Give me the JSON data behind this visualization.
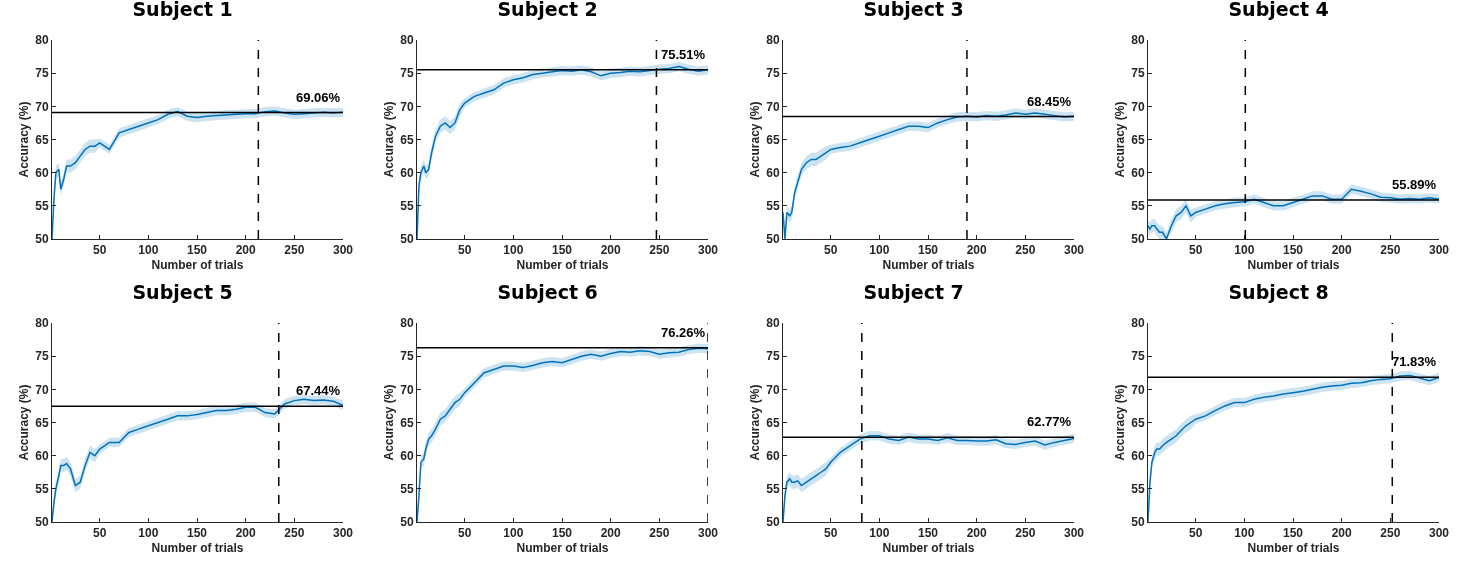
{
  "chart_data": [
    {
      "type": "line",
      "title": "Subject 1",
      "xlabel": "Number of trials",
      "ylabel": "Accuracy (%)",
      "xlim": [
        1,
        300
      ],
      "xticks": [
        50,
        100,
        150,
        200,
        250,
        300
      ],
      "ylim": [
        50,
        80
      ],
      "yticks": [
        50,
        55,
        60,
        65,
        70,
        75,
        80
      ],
      "grid": false,
      "x": [
        1,
        3,
        5,
        8,
        10,
        13,
        16,
        20,
        25,
        30,
        35,
        40,
        45,
        50,
        60,
        70,
        80,
        90,
        100,
        110,
        120,
        130,
        140,
        150,
        160,
        170,
        180,
        190,
        200,
        210,
        220,
        230,
        240,
        250,
        260,
        270,
        280,
        290,
        300
      ],
      "series": [
        {
          "color": "#0072bd",
          "values": [
            50,
            56,
            60,
            60.5,
            57.5,
            59,
            61,
            61,
            61.5,
            62.5,
            63.5,
            64,
            64,
            64.5,
            63.5,
            66,
            66.5,
            67,
            67.5,
            68,
            68.8,
            69.2,
            68.5,
            68.3,
            68.5,
            68.6,
            68.7,
            68.8,
            68.9,
            68.9,
            69.2,
            69.3,
            69,
            68.8,
            68.9,
            69,
            69.1,
            69,
            69.1
          ],
          "lower": [
            50,
            55,
            59,
            59.5,
            56.5,
            58,
            60,
            60,
            60.5,
            61.5,
            62.5,
            63,
            63,
            63.8,
            62.8,
            65.3,
            65.8,
            66.3,
            66.8,
            67.3,
            68.1,
            68.5,
            67.8,
            67.6,
            67.8,
            67.9,
            68,
            68.1,
            68.2,
            68.2,
            68.5,
            68.6,
            68.3,
            68.1,
            68.2,
            68.3,
            68.4,
            68.3,
            68.4
          ],
          "upper": [
            51,
            57,
            61,
            61.5,
            58.5,
            60,
            62,
            62,
            62.5,
            63.5,
            64.5,
            65,
            65,
            65.2,
            64.2,
            66.7,
            67.2,
            67.7,
            68.2,
            68.7,
            69.5,
            69.9,
            69.2,
            69,
            69.2,
            69.3,
            69.4,
            69.5,
            69.6,
            69.6,
            69.9,
            70,
            69.7,
            69.5,
            69.6,
            69.7,
            69.8,
            69.7,
            69.8
          ]
        }
      ],
      "ref_lines": [
        {
          "axis": "y",
          "value": 69.06,
          "label": "69.06%",
          "color": "#000000"
        },
        {
          "axis": "x",
          "value": 213,
          "color": "#000000",
          "line_style": "dashed"
        }
      ]
    },
    {
      "type": "line",
      "title": "Subject 2",
      "xlabel": "Number of trials",
      "ylabel": "Accuracy (%)",
      "xlim": [
        1,
        300
      ],
      "xticks": [
        50,
        100,
        150,
        200,
        250,
        300
      ],
      "ylim": [
        50,
        80
      ],
      "yticks": [
        50,
        55,
        60,
        65,
        70,
        75,
        80
      ],
      "grid": false,
      "x": [
        1,
        3,
        5,
        8,
        10,
        13,
        16,
        20,
        25,
        30,
        35,
        40,
        45,
        50,
        60,
        70,
        80,
        90,
        100,
        110,
        120,
        130,
        140,
        150,
        160,
        170,
        180,
        190,
        200,
        210,
        220,
        230,
        240,
        250,
        260,
        270,
        280,
        290,
        300
      ],
      "series": [
        {
          "color": "#0072bd",
          "values": [
            50,
            58,
            60,
            61,
            60,
            60.5,
            63,
            65.5,
            67,
            67.5,
            66.8,
            67.5,
            69.5,
            70.5,
            71.5,
            72,
            72.5,
            73.5,
            74,
            74.3,
            74.8,
            75,
            75.2,
            75.4,
            75.3,
            75.5,
            75.2,
            74.6,
            75,
            75.1,
            75.3,
            75.2,
            75.4,
            75.6,
            75.7,
            76,
            75.6,
            75.3,
            75.5
          ],
          "lower": [
            50,
            57,
            59,
            60,
            59,
            59.5,
            62,
            64.5,
            66,
            66.5,
            65.8,
            66.5,
            68.5,
            69.8,
            70.8,
            71.3,
            71.8,
            72.8,
            73.3,
            73.6,
            74.1,
            74.3,
            74.5,
            74.7,
            74.6,
            74.8,
            74.5,
            73.9,
            74.3,
            74.4,
            74.6,
            74.5,
            74.7,
            74.9,
            75,
            75.3,
            74.9,
            74.6,
            74.8
          ],
          "upper": [
            51,
            59,
            61,
            62,
            61,
            61.5,
            64,
            66.5,
            68,
            68.5,
            67.8,
            68.5,
            70.5,
            71.2,
            72.2,
            72.7,
            73.2,
            74.2,
            74.7,
            75,
            75.5,
            75.7,
            75.9,
            76.1,
            76,
            76.2,
            75.9,
            75.3,
            75.7,
            75.8,
            76,
            75.9,
            76.1,
            76.3,
            76.4,
            76.7,
            76.3,
            76,
            76.2
          ]
        }
      ],
      "ref_lines": [
        {
          "axis": "y",
          "value": 75.51,
          "label": "75.51%",
          "color": "#000000"
        },
        {
          "axis": "x",
          "value": 247,
          "color": "#000000",
          "line_style": "dashed"
        }
      ]
    },
    {
      "type": "line",
      "title": "Subject 3",
      "xlabel": "Number of trials",
      "ylabel": "Accuracy (%)",
      "xlim": [
        1,
        300
      ],
      "xticks": [
        50,
        100,
        150,
        200,
        250,
        300
      ],
      "ylim": [
        50,
        80
      ],
      "yticks": [
        50,
        55,
        60,
        65,
        70,
        75,
        80
      ],
      "grid": false,
      "x": [
        1,
        3,
        5,
        8,
        10,
        13,
        16,
        20,
        25,
        30,
        35,
        40,
        45,
        50,
        60,
        70,
        80,
        90,
        100,
        110,
        120,
        130,
        140,
        150,
        160,
        170,
        180,
        190,
        200,
        210,
        220,
        230,
        240,
        250,
        260,
        270,
        280,
        290,
        300
      ],
      "series": [
        {
          "color": "#0072bd",
          "values": [
            54,
            50,
            54,
            53.5,
            54,
            57,
            58.5,
            60.5,
            61.5,
            62,
            62,
            62.5,
            63,
            63.5,
            63.8,
            64,
            64.5,
            65,
            65.5,
            66,
            66.5,
            67,
            67,
            66.8,
            67.5,
            68,
            68.4,
            68.5,
            68.4,
            68.6,
            68.5,
            68.7,
            69,
            68.8,
            69,
            68.8,
            68.6,
            68.4,
            68.5
          ],
          "lower": [
            53,
            50,
            53,
            52.5,
            53,
            56,
            57.5,
            59.5,
            60.5,
            61,
            61,
            61.5,
            62,
            62.8,
            63.1,
            63.3,
            63.8,
            64.3,
            64.8,
            65.3,
            65.8,
            66.3,
            66.3,
            66.1,
            66.8,
            67.3,
            67.7,
            67.8,
            67.7,
            67.9,
            67.8,
            68,
            68.3,
            68.1,
            68.3,
            68.1,
            67.9,
            67.7,
            67.8
          ],
          "upper": [
            55,
            51,
            55,
            54.5,
            55,
            58,
            59.5,
            61.5,
            62.5,
            63,
            63,
            63.5,
            64,
            64.2,
            64.5,
            64.7,
            65.2,
            65.7,
            66.2,
            66.7,
            67.2,
            67.7,
            67.7,
            67.5,
            68.2,
            68.7,
            69.1,
            69.2,
            69.1,
            69.3,
            69.2,
            69.4,
            69.7,
            69.5,
            69.7,
            69.5,
            69.3,
            69.1,
            69.2
          ]
        }
      ],
      "ref_lines": [
        {
          "axis": "y",
          "value": 68.45,
          "label": "68.45%",
          "color": "#000000"
        },
        {
          "axis": "x",
          "value": 190,
          "color": "#000000",
          "line_style": "dashed"
        }
      ]
    },
    {
      "type": "line",
      "title": "Subject 4",
      "xlabel": "Number of trials",
      "ylabel": "Accuracy (%)",
      "xlim": [
        1,
        300
      ],
      "xticks": [
        50,
        100,
        150,
        200,
        250,
        300
      ],
      "ylim": [
        50,
        80
      ],
      "yticks": [
        50,
        55,
        60,
        65,
        70,
        75,
        80
      ],
      "grid": false,
      "x": [
        1,
        3,
        5,
        8,
        10,
        13,
        16,
        20,
        25,
        30,
        35,
        40,
        45,
        50,
        60,
        70,
        80,
        90,
        100,
        110,
        120,
        130,
        140,
        150,
        160,
        170,
        180,
        190,
        200,
        210,
        220,
        230,
        240,
        250,
        260,
        270,
        280,
        290,
        300
      ],
      "series": [
        {
          "color": "#0072bd",
          "values": [
            52,
            51.5,
            52,
            52,
            51.5,
            51,
            51,
            50,
            52,
            53.5,
            54,
            55,
            53.5,
            54,
            54.5,
            55,
            55.3,
            55.5,
            55.6,
            56,
            55.5,
            55,
            55,
            55.5,
            56,
            56.5,
            56.5,
            56,
            56,
            57.5,
            57.2,
            56.8,
            56.3,
            56.2,
            56,
            56.1,
            56,
            56.2,
            56
          ],
          "lower": [
            51,
            50.5,
            51,
            51,
            50.5,
            50,
            50,
            50,
            51,
            52.5,
            53,
            54,
            52.5,
            53.3,
            53.8,
            54.3,
            54.6,
            54.8,
            54.9,
            55.3,
            54.8,
            54.3,
            54.3,
            54.8,
            55.3,
            55.8,
            55.8,
            55.3,
            55.3,
            56.8,
            56.5,
            56.1,
            55.6,
            55.5,
            55.3,
            55.4,
            55.3,
            55.5,
            55.3
          ],
          "upper": [
            53,
            52.5,
            53,
            53,
            52.5,
            52,
            52,
            51,
            53,
            54.5,
            55,
            56,
            54.5,
            54.7,
            55.2,
            55.7,
            56,
            56.2,
            56.3,
            56.7,
            56.2,
            55.7,
            55.7,
            56.2,
            56.7,
            57.2,
            57.2,
            56.7,
            56.7,
            58.2,
            57.9,
            57.5,
            57,
            56.9,
            56.7,
            56.8,
            56.7,
            56.9,
            56.7
          ]
        }
      ],
      "ref_lines": [
        {
          "axis": "y",
          "value": 55.89,
          "label": "55.89%",
          "color": "#000000"
        },
        {
          "axis": "x",
          "value": 101,
          "color": "#000000",
          "line_style": "dashed"
        }
      ]
    },
    {
      "type": "line",
      "title": "Subject 5",
      "xlabel": "Number of trials",
      "ylabel": "Accuracy (%)",
      "xlim": [
        1,
        300
      ],
      "xticks": [
        50,
        100,
        150,
        200,
        250,
        300
      ],
      "ylim": [
        50,
        80
      ],
      "yticks": [
        50,
        55,
        60,
        65,
        70,
        75,
        80
      ],
      "grid": false,
      "x": [
        1,
        3,
        5,
        8,
        10,
        13,
        16,
        20,
        25,
        30,
        35,
        40,
        45,
        50,
        60,
        70,
        80,
        90,
        100,
        110,
        120,
        130,
        140,
        150,
        160,
        170,
        180,
        190,
        200,
        210,
        220,
        230,
        240,
        250,
        260,
        270,
        280,
        290,
        300
      ],
      "series": [
        {
          "color": "#0072bd",
          "values": [
            50,
            53,
            55,
            57,
            58.5,
            58.5,
            58.8,
            58,
            55.5,
            56,
            58.5,
            60.5,
            60,
            61,
            62,
            62,
            63.5,
            64,
            64.5,
            65,
            65.5,
            66,
            66,
            66.2,
            66.5,
            66.8,
            66.8,
            67,
            67.3,
            67.3,
            66.5,
            66.3,
            67.8,
            68.3,
            68.5,
            68.3,
            68.4,
            68.2,
            67.6
          ],
          "lower": [
            50,
            52,
            54,
            56,
            57.5,
            57.5,
            57.8,
            57,
            54.5,
            55,
            57.5,
            59.5,
            59,
            60.3,
            61.3,
            61.3,
            62.8,
            63.3,
            63.8,
            64.3,
            64.8,
            65.3,
            65.3,
            65.5,
            65.8,
            66.1,
            66.1,
            66.3,
            66.6,
            66.6,
            65.8,
            65.6,
            67.1,
            67.6,
            67.8,
            67.6,
            67.7,
            67.5,
            66.9
          ],
          "upper": [
            51,
            54,
            56,
            58,
            59.5,
            59.5,
            59.8,
            59,
            56.5,
            57,
            59.5,
            61.5,
            61,
            61.7,
            62.7,
            62.7,
            64.2,
            64.7,
            65.2,
            65.7,
            66.2,
            66.7,
            66.7,
            66.9,
            67.2,
            67.5,
            67.5,
            67.7,
            68,
            68,
            67.2,
            67,
            68.5,
            69,
            69.2,
            69,
            69.1,
            68.9,
            68.3
          ]
        }
      ],
      "ref_lines": [
        {
          "axis": "y",
          "value": 67.44,
          "label": "67.44%",
          "color": "#000000"
        },
        {
          "axis": "x",
          "value": 234,
          "color": "#000000",
          "line_style": "dashed"
        }
      ]
    },
    {
      "type": "line",
      "title": "Subject 6",
      "xlabel": "Number of trials",
      "ylabel": "Accuracy (%)",
      "xlim": [
        1,
        300
      ],
      "xticks": [
        50,
        100,
        150,
        200,
        250,
        300
      ],
      "ylim": [
        50,
        80
      ],
      "yticks": [
        50,
        55,
        60,
        65,
        70,
        75,
        80
      ],
      "grid": false,
      "x": [
        1,
        3,
        5,
        8,
        10,
        13,
        16,
        20,
        25,
        30,
        35,
        40,
        45,
        50,
        60,
        70,
        80,
        90,
        100,
        110,
        120,
        130,
        140,
        150,
        160,
        170,
        180,
        190,
        200,
        210,
        220,
        230,
        240,
        250,
        260,
        270,
        280,
        290,
        300
      ],
      "series": [
        {
          "color": "#0072bd",
          "values": [
            50,
            54,
            59,
            59.5,
            61,
            62.5,
            63,
            64,
            65.5,
            66,
            67,
            68,
            68.5,
            69.5,
            71,
            72.5,
            73,
            73.5,
            73.5,
            73.3,
            73.6,
            74,
            74.2,
            74,
            74.5,
            75,
            75.3,
            75,
            75.4,
            75.7,
            75.6,
            75.8,
            75.7,
            75.3,
            75.5,
            75.6,
            76,
            76.2,
            76.1
          ],
          "lower": [
            50,
            53,
            58,
            58.5,
            60,
            61.5,
            62,
            63,
            64.5,
            65,
            66,
            67,
            67.5,
            68.8,
            70.3,
            71.8,
            72.3,
            72.8,
            72.8,
            72.6,
            72.9,
            73.3,
            73.5,
            73.3,
            73.8,
            74.3,
            74.6,
            74.3,
            74.7,
            75,
            74.9,
            75.1,
            75,
            74.6,
            74.8,
            74.9,
            75.3,
            75.5,
            75.4
          ],
          "upper": [
            51,
            55,
            60,
            60.5,
            62,
            63.5,
            64,
            65,
            66.5,
            67,
            68,
            69,
            69.5,
            70.2,
            71.7,
            73.2,
            73.7,
            74.2,
            74.2,
            74,
            74.3,
            74.7,
            74.9,
            74.7,
            75.2,
            75.7,
            76,
            75.7,
            76.1,
            76.4,
            76.3,
            76.5,
            76.4,
            76,
            76.2,
            76.3,
            76.7,
            76.9,
            76.8
          ]
        }
      ],
      "ref_lines": [
        {
          "axis": "y",
          "value": 76.26,
          "label": "76.26%",
          "color": "#000000"
        },
        {
          "axis": "x",
          "value": 300,
          "color": "#000000",
          "line_style": "dashed"
        }
      ]
    },
    {
      "type": "line",
      "title": "Subject 7",
      "xlabel": "Number of trials",
      "ylabel": "Accuracy (%)",
      "xlim": [
        1,
        300
      ],
      "xticks": [
        50,
        100,
        150,
        200,
        250,
        300
      ],
      "ylim": [
        50,
        80
      ],
      "yticks": [
        50,
        55,
        60,
        65,
        70,
        75,
        80
      ],
      "grid": false,
      "x": [
        1,
        3,
        5,
        8,
        10,
        13,
        16,
        20,
        25,
        30,
        35,
        40,
        45,
        50,
        60,
        70,
        80,
        90,
        100,
        110,
        120,
        130,
        140,
        150,
        160,
        170,
        180,
        190,
        200,
        210,
        220,
        230,
        240,
        250,
        260,
        270,
        280,
        290,
        300
      ],
      "series": [
        {
          "color": "#0072bd",
          "values": [
            50,
            54,
            56,
            56.5,
            56,
            56,
            56.2,
            55.5,
            56,
            56.5,
            57,
            57.5,
            58,
            59,
            60.5,
            61.5,
            62.5,
            63,
            63,
            62.5,
            62.3,
            62.8,
            62.5,
            62.5,
            62.3,
            62.7,
            62.3,
            62.3,
            62.2,
            62.2,
            62.4,
            61.8,
            61.7,
            62,
            62.2,
            61.6,
            62,
            62.3,
            62.6
          ],
          "lower": [
            50,
            53,
            55,
            55.5,
            55,
            55,
            55.2,
            54.5,
            55,
            55.5,
            56,
            56.5,
            57,
            58.3,
            59.8,
            60.8,
            61.8,
            62.3,
            62.3,
            61.8,
            61.6,
            62.1,
            61.8,
            61.8,
            61.6,
            62,
            61.6,
            61.6,
            61.5,
            61.5,
            61.7,
            61.1,
            61,
            61.3,
            61.5,
            60.9,
            61.3,
            61.6,
            61.9
          ],
          "upper": [
            51,
            55,
            57,
            57.5,
            57,
            57,
            57.2,
            56.5,
            57,
            57.5,
            58,
            58.5,
            59,
            59.7,
            61.2,
            62.2,
            63.2,
            63.7,
            63.7,
            63.2,
            63,
            63.5,
            63.2,
            63.2,
            63,
            63.4,
            63,
            63,
            62.9,
            62.9,
            63.1,
            62.5,
            62.4,
            62.7,
            62.9,
            62.3,
            62.7,
            63,
            63.3
          ]
        }
      ],
      "ref_lines": [
        {
          "axis": "y",
          "value": 62.77,
          "label": "62.77%",
          "color": "#000000"
        },
        {
          "axis": "x",
          "value": 82,
          "color": "#000000",
          "line_style": "dashed"
        }
      ]
    },
    {
      "type": "line",
      "title": "Subject 8",
      "xlabel": "Number of trials",
      "ylabel": "Accuracy (%)",
      "xlim": [
        1,
        300
      ],
      "xticks": [
        50,
        100,
        150,
        200,
        250,
        300
      ],
      "ylim": [
        50,
        80
      ],
      "yticks": [
        50,
        55,
        60,
        65,
        70,
        75,
        80
      ],
      "grid": false,
      "x": [
        1,
        3,
        5,
        8,
        10,
        13,
        16,
        20,
        25,
        30,
        35,
        40,
        45,
        50,
        60,
        70,
        80,
        90,
        100,
        110,
        120,
        130,
        140,
        150,
        160,
        170,
        180,
        190,
        200,
        210,
        220,
        230,
        240,
        250,
        260,
        270,
        280,
        290,
        300
      ],
      "series": [
        {
          "color": "#0072bd",
          "values": [
            50,
            56,
            59,
            60.5,
            61,
            61,
            61.5,
            62,
            62.5,
            63,
            63.8,
            64.5,
            65,
            65.5,
            66,
            66.8,
            67.5,
            68,
            68,
            68.5,
            68.8,
            69,
            69.3,
            69.5,
            69.7,
            70,
            70.3,
            70.5,
            70.6,
            70.9,
            71,
            71.3,
            71.5,
            71.6,
            72,
            72.1,
            71.7,
            71.3,
            71.8
          ],
          "lower": [
            50,
            55,
            58,
            59.5,
            60,
            60,
            60.5,
            61,
            61.5,
            62,
            62.8,
            63.5,
            64,
            64.8,
            65.3,
            66.1,
            66.8,
            67.3,
            67.3,
            67.8,
            68.1,
            68.3,
            68.6,
            68.8,
            69,
            69.3,
            69.6,
            69.8,
            69.9,
            70.2,
            70.3,
            70.6,
            70.8,
            70.9,
            71.3,
            71.4,
            71,
            70.6,
            71.1
          ],
          "upper": [
            51,
            57,
            60,
            61.5,
            62,
            62,
            62.5,
            63,
            63.5,
            64,
            64.8,
            65.5,
            66,
            66.2,
            66.7,
            67.5,
            68.2,
            68.7,
            68.7,
            69.2,
            69.5,
            69.7,
            70,
            70.2,
            70.4,
            70.7,
            71,
            71.2,
            71.3,
            71.6,
            71.7,
            72,
            72.2,
            72.3,
            72.7,
            72.8,
            72.4,
            72,
            72.5
          ]
        }
      ],
      "ref_lines": [
        {
          "axis": "y",
          "value": 71.83,
          "label": "71.83%",
          "color": "#000000"
        },
        {
          "axis": "x",
          "value": 252,
          "color": "#000000",
          "line_style": "dashed"
        }
      ]
    }
  ]
}
